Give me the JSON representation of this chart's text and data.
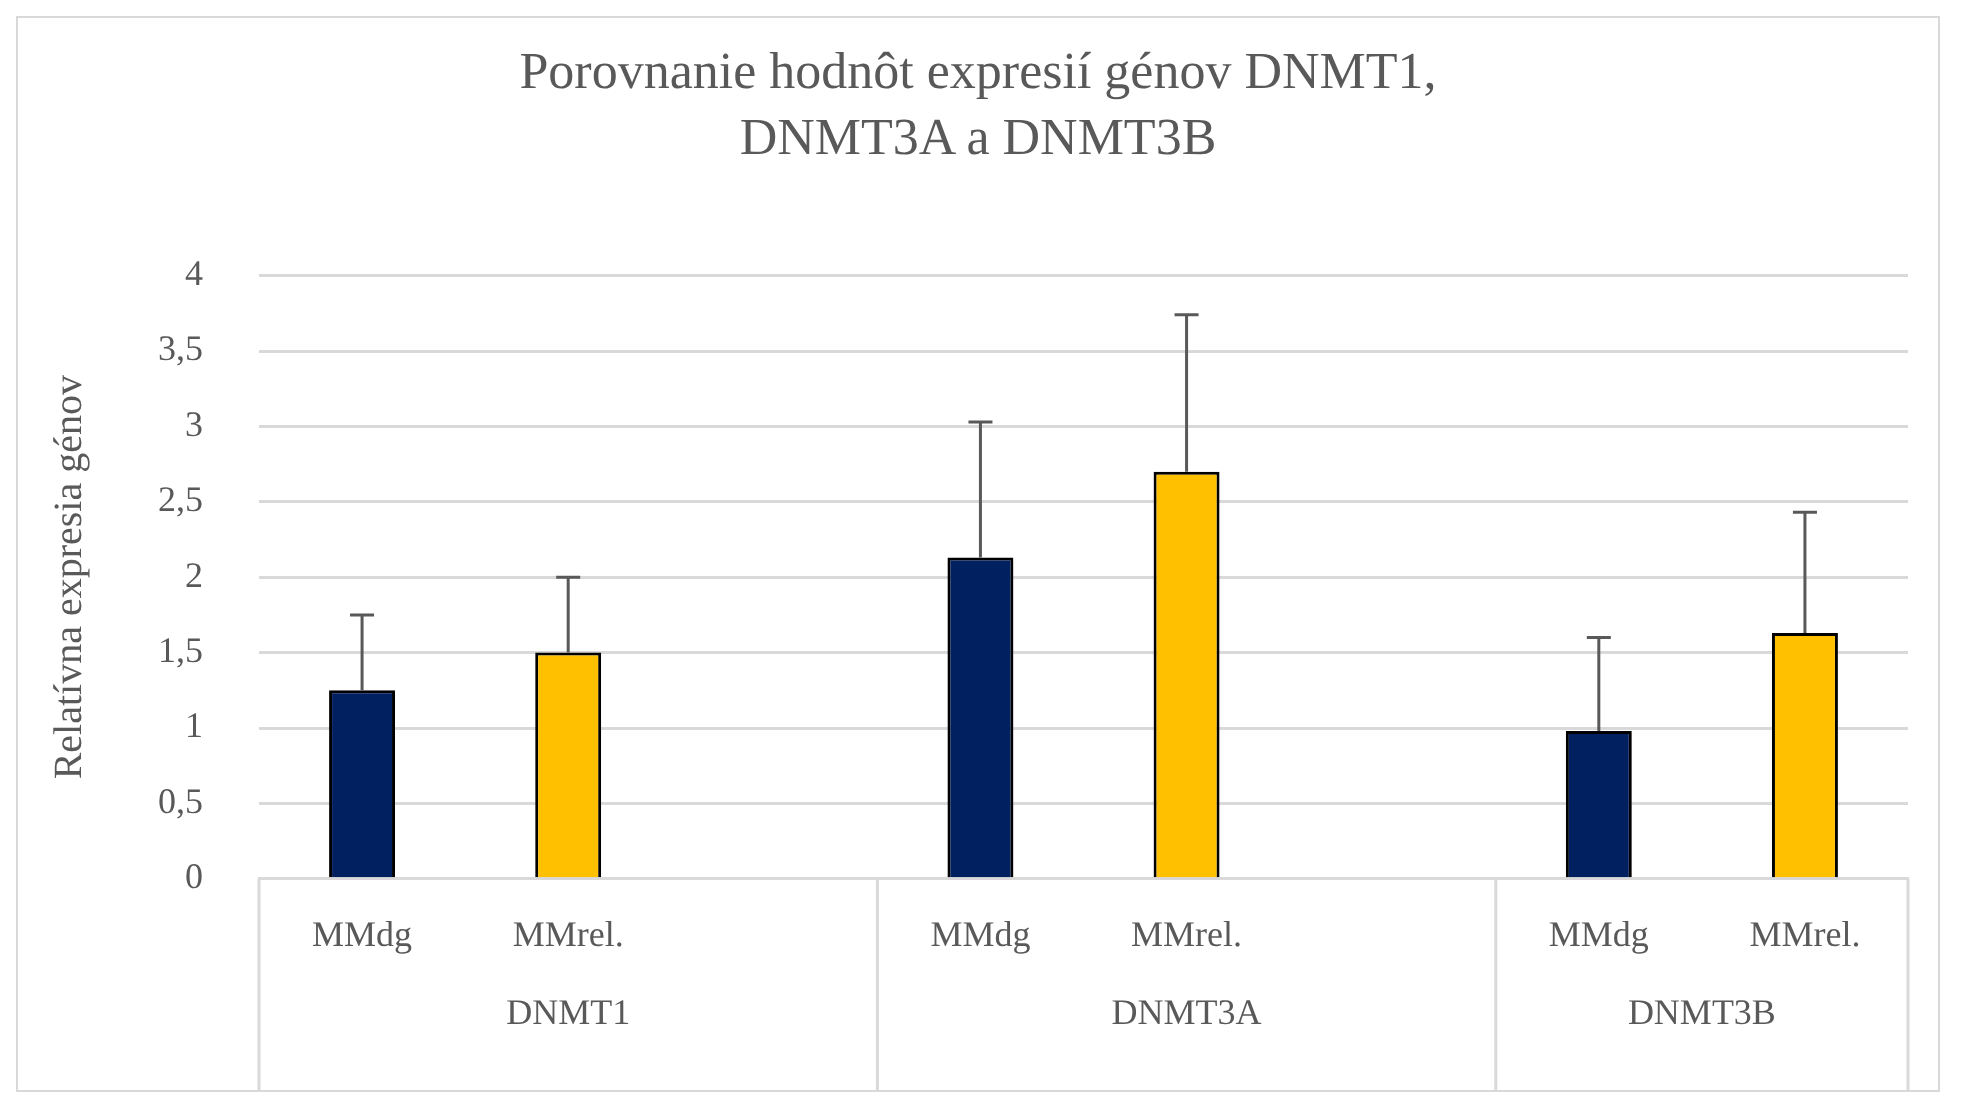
{
  "chart_data": {
    "type": "bar",
    "title": "Porovnanie hodnôt expresií génov DNMT1, DNMT3A a DNMT3B",
    "ylabel": "Relatívna expresia génov",
    "categories": [
      "MMdg",
      "MMrel.",
      null,
      "MMdg",
      "MMrel.",
      null,
      "MMdg",
      "MMrel."
    ],
    "annotations": [
      "DNMT1",
      "DNMT3A",
      "DNMT3B"
    ],
    "values": [
      1.25,
      1.5,
      null,
      2.13,
      2.7,
      null,
      0.98,
      1.63
    ],
    "colors": [
      "#002060",
      "#ffc000",
      null,
      "#002060",
      "#ffc000",
      null,
      "#002060",
      "#ffc000"
    ],
    "errors": [
      [
        1.25,
        1.75
      ],
      [
        1.5,
        2.0
      ],
      null,
      [
        2.13,
        3.03
      ],
      [
        2.7,
        3.74
      ],
      null,
      [
        0.98,
        1.6
      ],
      [
        1.63,
        2.43
      ]
    ],
    "ylim": [
      0,
      4
    ],
    "yticks": [
      0,
      {
        "value": 0.5,
        "label": "0,5"
      },
      1,
      {
        "value": 1.5,
        "label": "1,5"
      },
      2,
      {
        "value": 2.5,
        "label": "2,5"
      },
      3,
      {
        "value": 3.5,
        "label": "3,5"
      },
      4
    ],
    "grid": "y",
    "legend": false
  }
}
